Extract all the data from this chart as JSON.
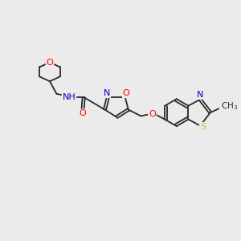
{
  "bg_color": "#ebebeb",
  "bond_color": "#2a2a2a",
  "atom_colors": {
    "O": "#ff0000",
    "N": "#0000cc",
    "S": "#cccc00",
    "H": "#666666",
    "C": "#2a2a2a"
  },
  "font_size": 8.0,
  "fig_size": [
    3.0,
    3.0
  ],
  "dpi": 100
}
